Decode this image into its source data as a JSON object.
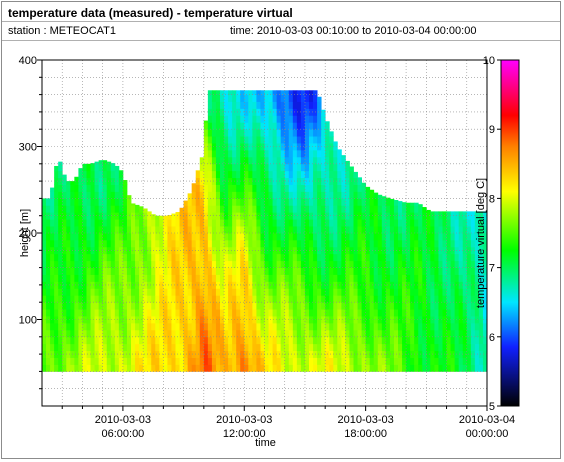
{
  "window": {
    "title": "temperature data (measured) - temperature virtual",
    "station_text": "station : METEOCAT1",
    "time_text": "time: 2010-03-03 00:10:00 to 2010-03-04 00:00:00"
  },
  "colors": {
    "grid": "#8a8a8a",
    "frame": "#000000",
    "colormap": [
      "#000000",
      "#1020ff",
      "#00e6ff",
      "#00ff00",
      "#ffff00",
      "#ff8000",
      "#ff0000",
      "#ff00ff"
    ]
  },
  "chart_data": {
    "type": "heatmap",
    "title": "",
    "xlabel": "time",
    "ylabel": "height [m]",
    "colorbar_label": "temperature virtual [deg C]",
    "xlim": [
      2.0,
      24.0
    ],
    "ylim": [
      0,
      400
    ],
    "clim": [
      5,
      10
    ],
    "x_ticks": [
      {
        "value": 6,
        "line1": "2010-03-03",
        "line2": "06:00:00"
      },
      {
        "value": 12,
        "line1": "2010-03-03",
        "line2": "12:00:00"
      },
      {
        "value": 18,
        "line1": "2010-03-03",
        "line2": "18:00:00"
      },
      {
        "value": 24,
        "line1": "2010-03-04",
        "line2": "00:00:00"
      }
    ],
    "y_ticks": [
      100,
      200,
      300,
      400
    ],
    "colorbar_ticks": [
      5,
      6,
      7,
      8,
      9,
      10
    ],
    "grid": true,
    "x_unit": "hours since 2010-03-03 00:00",
    "top_of_data_m": [
      [
        2.0,
        240
      ],
      [
        2.4,
        240
      ],
      [
        2.8,
        290
      ],
      [
        3.2,
        260
      ],
      [
        3.6,
        260
      ],
      [
        4.0,
        280
      ],
      [
        4.4,
        280
      ],
      [
        5.0,
        285
      ],
      [
        5.6,
        280
      ],
      [
        6.0,
        270
      ],
      [
        6.4,
        235
      ],
      [
        7.0,
        230
      ],
      [
        7.6,
        220
      ],
      [
        8.2,
        220
      ],
      [
        8.8,
        225
      ],
      [
        9.4,
        250
      ],
      [
        10.0,
        295
      ],
      [
        10.2,
        365
      ],
      [
        12.0,
        365
      ],
      [
        14.0,
        365
      ],
      [
        15.6,
        365
      ],
      [
        16.0,
        335
      ],
      [
        16.6,
        300
      ],
      [
        17.2,
        280
      ],
      [
        18.0,
        255
      ],
      [
        18.6,
        245
      ],
      [
        19.2,
        240
      ],
      [
        20.0,
        235
      ],
      [
        20.6,
        235
      ],
      [
        21.2,
        225
      ],
      [
        21.8,
        225
      ],
      [
        22.6,
        225
      ],
      [
        23.2,
        225
      ],
      [
        23.6,
        225
      ],
      [
        24.0,
        225
      ]
    ],
    "bottom_of_data_m": 40,
    "temperature_deg_c": [
      {
        "t": 2.0,
        "profile": [
          [
            50,
            7.6
          ],
          [
            150,
            7.1
          ],
          [
            250,
            6.9
          ]
        ]
      },
      {
        "t": 4.0,
        "profile": [
          [
            50,
            7.8
          ],
          [
            150,
            7.4
          ],
          [
            250,
            7.0
          ]
        ]
      },
      {
        "t": 6.0,
        "profile": [
          [
            50,
            8.0
          ],
          [
            150,
            7.6
          ],
          [
            250,
            7.1
          ]
        ]
      },
      {
        "t": 7.5,
        "profile": [
          [
            50,
            8.2
          ],
          [
            150,
            7.9
          ],
          [
            250,
            8.0
          ]
        ]
      },
      {
        "t": 9.0,
        "profile": [
          [
            50,
            8.4
          ],
          [
            150,
            8.3
          ],
          [
            250,
            8.3
          ]
        ]
      },
      {
        "t": 10.0,
        "profile": [
          [
            50,
            8.8
          ],
          [
            150,
            8.6
          ],
          [
            250,
            8.3
          ],
          [
            350,
            7.0
          ]
        ]
      },
      {
        "t": 11.0,
        "profile": [
          [
            50,
            8.4
          ],
          [
            150,
            7.9
          ],
          [
            250,
            7.3
          ],
          [
            350,
            6.6
          ]
        ]
      },
      {
        "t": 12.0,
        "profile": [
          [
            50,
            8.8
          ],
          [
            150,
            8.3
          ],
          [
            250,
            7.4
          ],
          [
            350,
            6.6
          ]
        ]
      },
      {
        "t": 13.0,
        "profile": [
          [
            50,
            8.2
          ],
          [
            150,
            7.6
          ],
          [
            250,
            7.0
          ],
          [
            350,
            6.4
          ]
        ]
      },
      {
        "t": 14.0,
        "profile": [
          [
            50,
            8.0
          ],
          [
            150,
            7.5
          ],
          [
            250,
            6.9
          ],
          [
            350,
            6.0
          ]
        ]
      },
      {
        "t": 15.0,
        "profile": [
          [
            50,
            8.0
          ],
          [
            150,
            7.4
          ],
          [
            250,
            6.6
          ],
          [
            350,
            5.9
          ]
        ]
      },
      {
        "t": 16.0,
        "profile": [
          [
            50,
            8.0
          ],
          [
            150,
            7.3
          ],
          [
            250,
            6.8
          ],
          [
            350,
            6.3
          ]
        ]
      },
      {
        "t": 18.0,
        "profile": [
          [
            50,
            7.8
          ],
          [
            150,
            7.3
          ],
          [
            250,
            7.0
          ]
        ]
      },
      {
        "t": 20.0,
        "profile": [
          [
            50,
            7.4
          ],
          [
            150,
            7.2
          ],
          [
            250,
            7.0
          ]
        ]
      },
      {
        "t": 22.0,
        "profile": [
          [
            50,
            7.2
          ],
          [
            150,
            7.1
          ],
          [
            250,
            6.9
          ]
        ]
      },
      {
        "t": 24.0,
        "profile": [
          [
            50,
            6.8
          ],
          [
            150,
            6.6
          ],
          [
            250,
            6.5
          ]
        ]
      }
    ]
  }
}
